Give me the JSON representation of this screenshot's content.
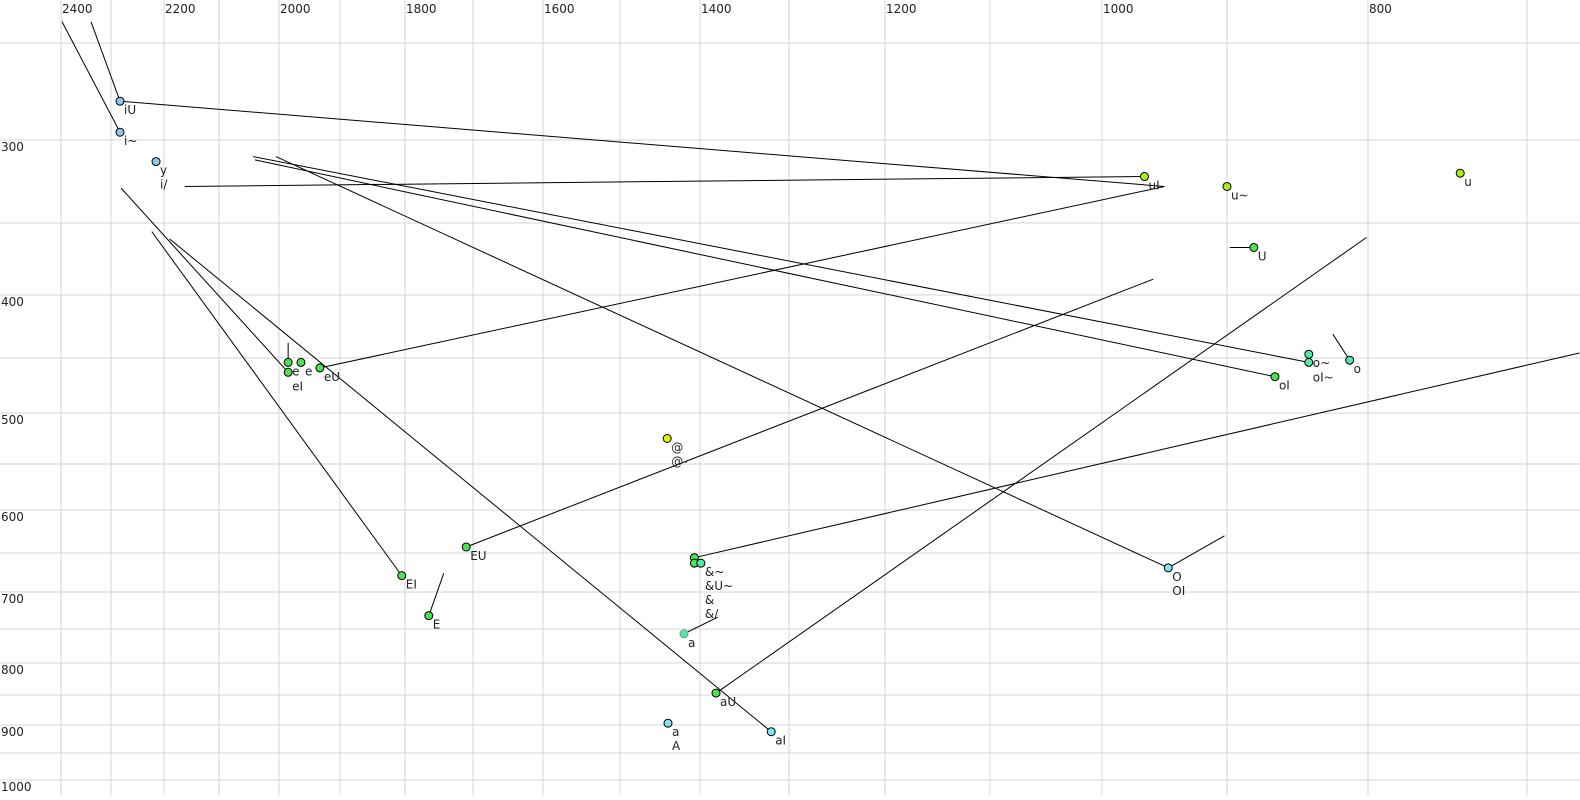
{
  "chart_data": {
    "type": "scatter",
    "title": "",
    "xlabel": "",
    "ylabel": "",
    "x_axis": {
      "quantity": "F2",
      "reversed": true,
      "scale": "nonlinear",
      "tick_labels": [
        "2400",
        "2200",
        "2000",
        "1800",
        "1600",
        "1400",
        "1200",
        "1000",
        "800"
      ],
      "grid_step": 100,
      "range": [
        2400,
        700
      ]
    },
    "y_axis": {
      "quantity": "F1",
      "reversed": true,
      "scale": "nonlinear",
      "tick_labels": [
        "300",
        "400",
        "500",
        "600",
        "700",
        "800",
        "900",
        "1000"
      ],
      "grid_step": 50,
      "range": [
        250,
        1000
      ]
    },
    "grid": true,
    "colors": {
      "blue": "#8ec8f2",
      "green": "#4ee24e",
      "yellow": "#e4f000",
      "lime": "#a4f01c",
      "teal": "#54e8a8",
      "cyan": "#80e6f2",
      "faint_label": "#7a7a9a"
    },
    "points": [
      {
        "f2": 2283,
        "f1": 280,
        "color": "blue",
        "labels": [
          "iU"
        ]
      },
      {
        "f2": 2283,
        "f1": 296,
        "color": "blue",
        "labels": [
          "i~"
        ]
      },
      {
        "f2": 2215,
        "f1": 313,
        "color": "blue",
        "labels": [
          "y",
          "i/"
        ]
      },
      {
        "f2": 1985,
        "f1": 454,
        "color": "green",
        "labels": [
          "e"
        ]
      },
      {
        "f2": 1964,
        "f1": 454,
        "color": "green",
        "labels": [
          "e"
        ]
      },
      {
        "f2": 1985,
        "f1": 463,
        "color": "green",
        "labels": [
          "eI"
        ]
      },
      {
        "f2": 1933,
        "f1": 459,
        "color": "green",
        "labels": [
          "eU"
        ]
      },
      {
        "f2": 1441,
        "f1": 525,
        "color": "yellow",
        "labels": [
          "@",
          "@-"
        ]
      },
      {
        "f2": 1710,
        "f1": 643,
        "color": "green",
        "labels": [
          "EU"
        ]
      },
      {
        "f2": 1805,
        "f1": 679,
        "color": "green",
        "labels": [
          "EI"
        ]
      },
      {
        "f2": 1765,
        "f1": 732,
        "color": "green",
        "labels": [
          "E"
        ]
      },
      {
        "f2": 1407,
        "f1": 656,
        "color": "green",
        "labels": []
      },
      {
        "f2": 1407,
        "f1": 663,
        "color": "green",
        "labels": []
      },
      {
        "f2": 1399,
        "f1": 663,
        "color": "teal",
        "labels": [
          "&~",
          "&U~",
          "&",
          "&/"
        ]
      },
      {
        "f2": 1420,
        "f1": 757,
        "color": "teal",
        "labels": [
          "a"
        ],
        "faint": true
      },
      {
        "f2": 1382,
        "f1": 847,
        "color": "green",
        "labels": [
          "aU"
        ]
      },
      {
        "f2": 1440,
        "f1": 897,
        "color": "cyan",
        "labels": [
          "a",
          "A"
        ]
      },
      {
        "f2": 1320,
        "f1": 912,
        "color": "cyan",
        "labels": [
          "aI"
        ]
      },
      {
        "f2": 947,
        "f1": 669,
        "color": "cyan",
        "labels": [
          "O",
          "OI"
        ]
      },
      {
        "f2": 966,
        "f1": 322,
        "color": "lime",
        "labels": [
          "uI"
        ]
      },
      {
        "f2": 900,
        "f1": 328,
        "color": "lime",
        "labels": [
          "u~"
        ]
      },
      {
        "f2": 881,
        "f1": 367,
        "color": "green",
        "labels": [
          "U"
        ]
      },
      {
        "f2": 742,
        "f1": 320,
        "color": "lime",
        "labels": [
          "u"
        ]
      },
      {
        "f2": 842,
        "f1": 447,
        "color": "teal",
        "labels": [
          "o~"
        ]
      },
      {
        "f2": 842,
        "f1": 454,
        "color": "teal",
        "labels": [
          "oI~"
        ]
      },
      {
        "f2": 813,
        "f1": 452,
        "color": "teal",
        "labels": [
          "o"
        ]
      },
      {
        "f2": 866,
        "f1": 467,
        "color": "green",
        "labels": [
          "oI"
        ]
      }
    ],
    "trajectories": [
      {
        "from": [
          2398,
          239
        ],
        "to": [
          2283,
          296
        ]
      },
      {
        "from": [
          2340,
          239
        ],
        "to": [
          2283,
          280
        ]
      },
      {
        "from": [
          2283,
          280
        ],
        "to": [
          950,
          328
        ]
      },
      {
        "from": [
          2162,
          328
        ],
        "to": [
          966,
          322
        ]
      },
      {
        "from": [
          2043,
          310
        ],
        "to": [
          842,
          454
        ]
      },
      {
        "from": [
          2040,
          312
        ],
        "to": [
          866,
          467
        ]
      },
      {
        "from": [
          2005,
          310
        ],
        "to": [
          947,
          669
        ]
      },
      {
        "from": [
          2281,
          329
        ],
        "to": [
          1985,
          463
        ]
      },
      {
        "from": [
          2190,
          361
        ],
        "to": [
          1320,
          912
        ]
      },
      {
        "from": [
          2223,
          356
        ],
        "to": [
          1805,
          679
        ]
      },
      {
        "from": [
          1985,
          438
        ],
        "to": [
          1985,
          454
        ]
      },
      {
        "from": [
          1933,
          459
        ],
        "to": [
          950,
          328
        ]
      },
      {
        "from": [
          1710,
          643
        ],
        "to": [
          959,
          389
        ]
      },
      {
        "from": [
          1765,
          732
        ],
        "to": [
          1743,
          676
        ]
      },
      {
        "from": [
          1407,
          656
        ],
        "to": [
          667,
          446
        ]
      },
      {
        "from": [
          1420,
          757
        ],
        "to": [
          1380,
          734
        ],
        "faint": true
      },
      {
        "from": [
          1382,
          847
        ],
        "to": [
          801,
          360
        ]
      },
      {
        "from": [
          947,
          669
        ],
        "to": [
          902,
          630
        ]
      },
      {
        "from": [
          898,
          367
        ],
        "to": [
          881,
          367
        ]
      },
      {
        "from": [
          825,
          431
        ],
        "to": [
          813,
          452
        ]
      }
    ]
  }
}
